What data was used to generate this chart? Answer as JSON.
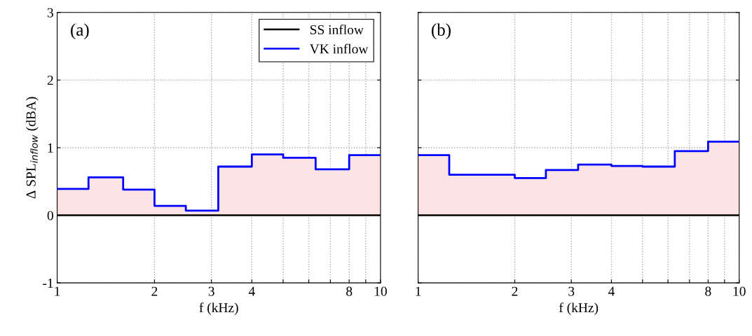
{
  "chart_data": [
    {
      "type": "step",
      "xlabel": "f (kHz)",
      "ylabel": "Δ SPL$_{inflow}$ (dBA)",
      "annotations": [
        "(a)"
      ],
      "log": "x",
      "grid": true,
      "legend": "top right",
      "line_style": "solid",
      "marker": "none",
      "xlim": [
        1,
        10
      ],
      "xticks": [
        1,
        2,
        3,
        4,
        {
          "value": 5,
          "label": null
        },
        {
          "value": 6,
          "label": null
        },
        {
          "value": 7,
          "label": null
        },
        8,
        {
          "value": 9,
          "label": null
        },
        10
      ],
      "ylim": [
        -1,
        3
      ],
      "yticks": [
        -1,
        0,
        1,
        2,
        3
      ],
      "series": [
        {
          "type": "area",
          "color": "#fde3e4",
          "x": [
            1,
            1.25,
            1.6,
            2,
            2.5,
            3.15,
            4,
            5,
            6.3,
            8,
            10
          ],
          "values": [
            0.39,
            0.56,
            0.38,
            0.14,
            0.07,
            0.72,
            0.9,
            0.85,
            0.68,
            0.89,
            0.89
          ]
        },
        {
          "type": "line",
          "name": "SS inflow",
          "color": "#000000",
          "x": [
            1,
            10
          ],
          "values": [
            0,
            0
          ]
        },
        {
          "name": "VK inflow",
          "color": "#0000ff",
          "x": [
            1,
            1.25,
            1.6,
            2,
            2.5,
            3.15,
            4,
            5,
            6.3,
            8,
            10
          ],
          "values": [
            0.39,
            0.56,
            0.38,
            0.14,
            0.07,
            0.72,
            0.9,
            0.85,
            0.68,
            0.89,
            0.89
          ]
        }
      ]
    },
    {
      "type": "step",
      "xlabel": "f (kHz)",
      "annotations": [
        "(b)"
      ],
      "log": "x",
      "grid": true,
      "tick_labels": "x",
      "line_style": "solid",
      "marker": "none",
      "xlim": [
        1,
        10
      ],
      "xticks": [
        1,
        2,
        3,
        4,
        {
          "value": 5,
          "label": null
        },
        {
          "value": 6,
          "label": null
        },
        {
          "value": 7,
          "label": null
        },
        8,
        {
          "value": 9,
          "label": null
        },
        10
      ],
      "ylim": [
        -1,
        3
      ],
      "yticks": [
        -1,
        0,
        1,
        2,
        3
      ],
      "series": [
        {
          "type": "area",
          "color": "#fde3e4",
          "x": [
            1,
            1.25,
            2,
            2.5,
            3.15,
            4,
            5,
            6.3,
            8,
            10
          ],
          "values": [
            0.89,
            0.6,
            0.55,
            0.67,
            0.75,
            0.73,
            0.72,
            0.95,
            1.09,
            1.09
          ]
        },
        {
          "type": "line",
          "color": "#000000",
          "x": [
            1,
            10
          ],
          "values": [
            0,
            0
          ]
        },
        {
          "color": "#0000ff",
          "x": [
            1,
            1.25,
            2,
            2.5,
            3.15,
            4,
            5,
            6.3,
            8,
            10
          ],
          "values": [
            0.89,
            0.6,
            0.55,
            0.67,
            0.75,
            0.73,
            0.72,
            0.95,
            1.09,
            1.09
          ]
        }
      ]
    }
  ]
}
